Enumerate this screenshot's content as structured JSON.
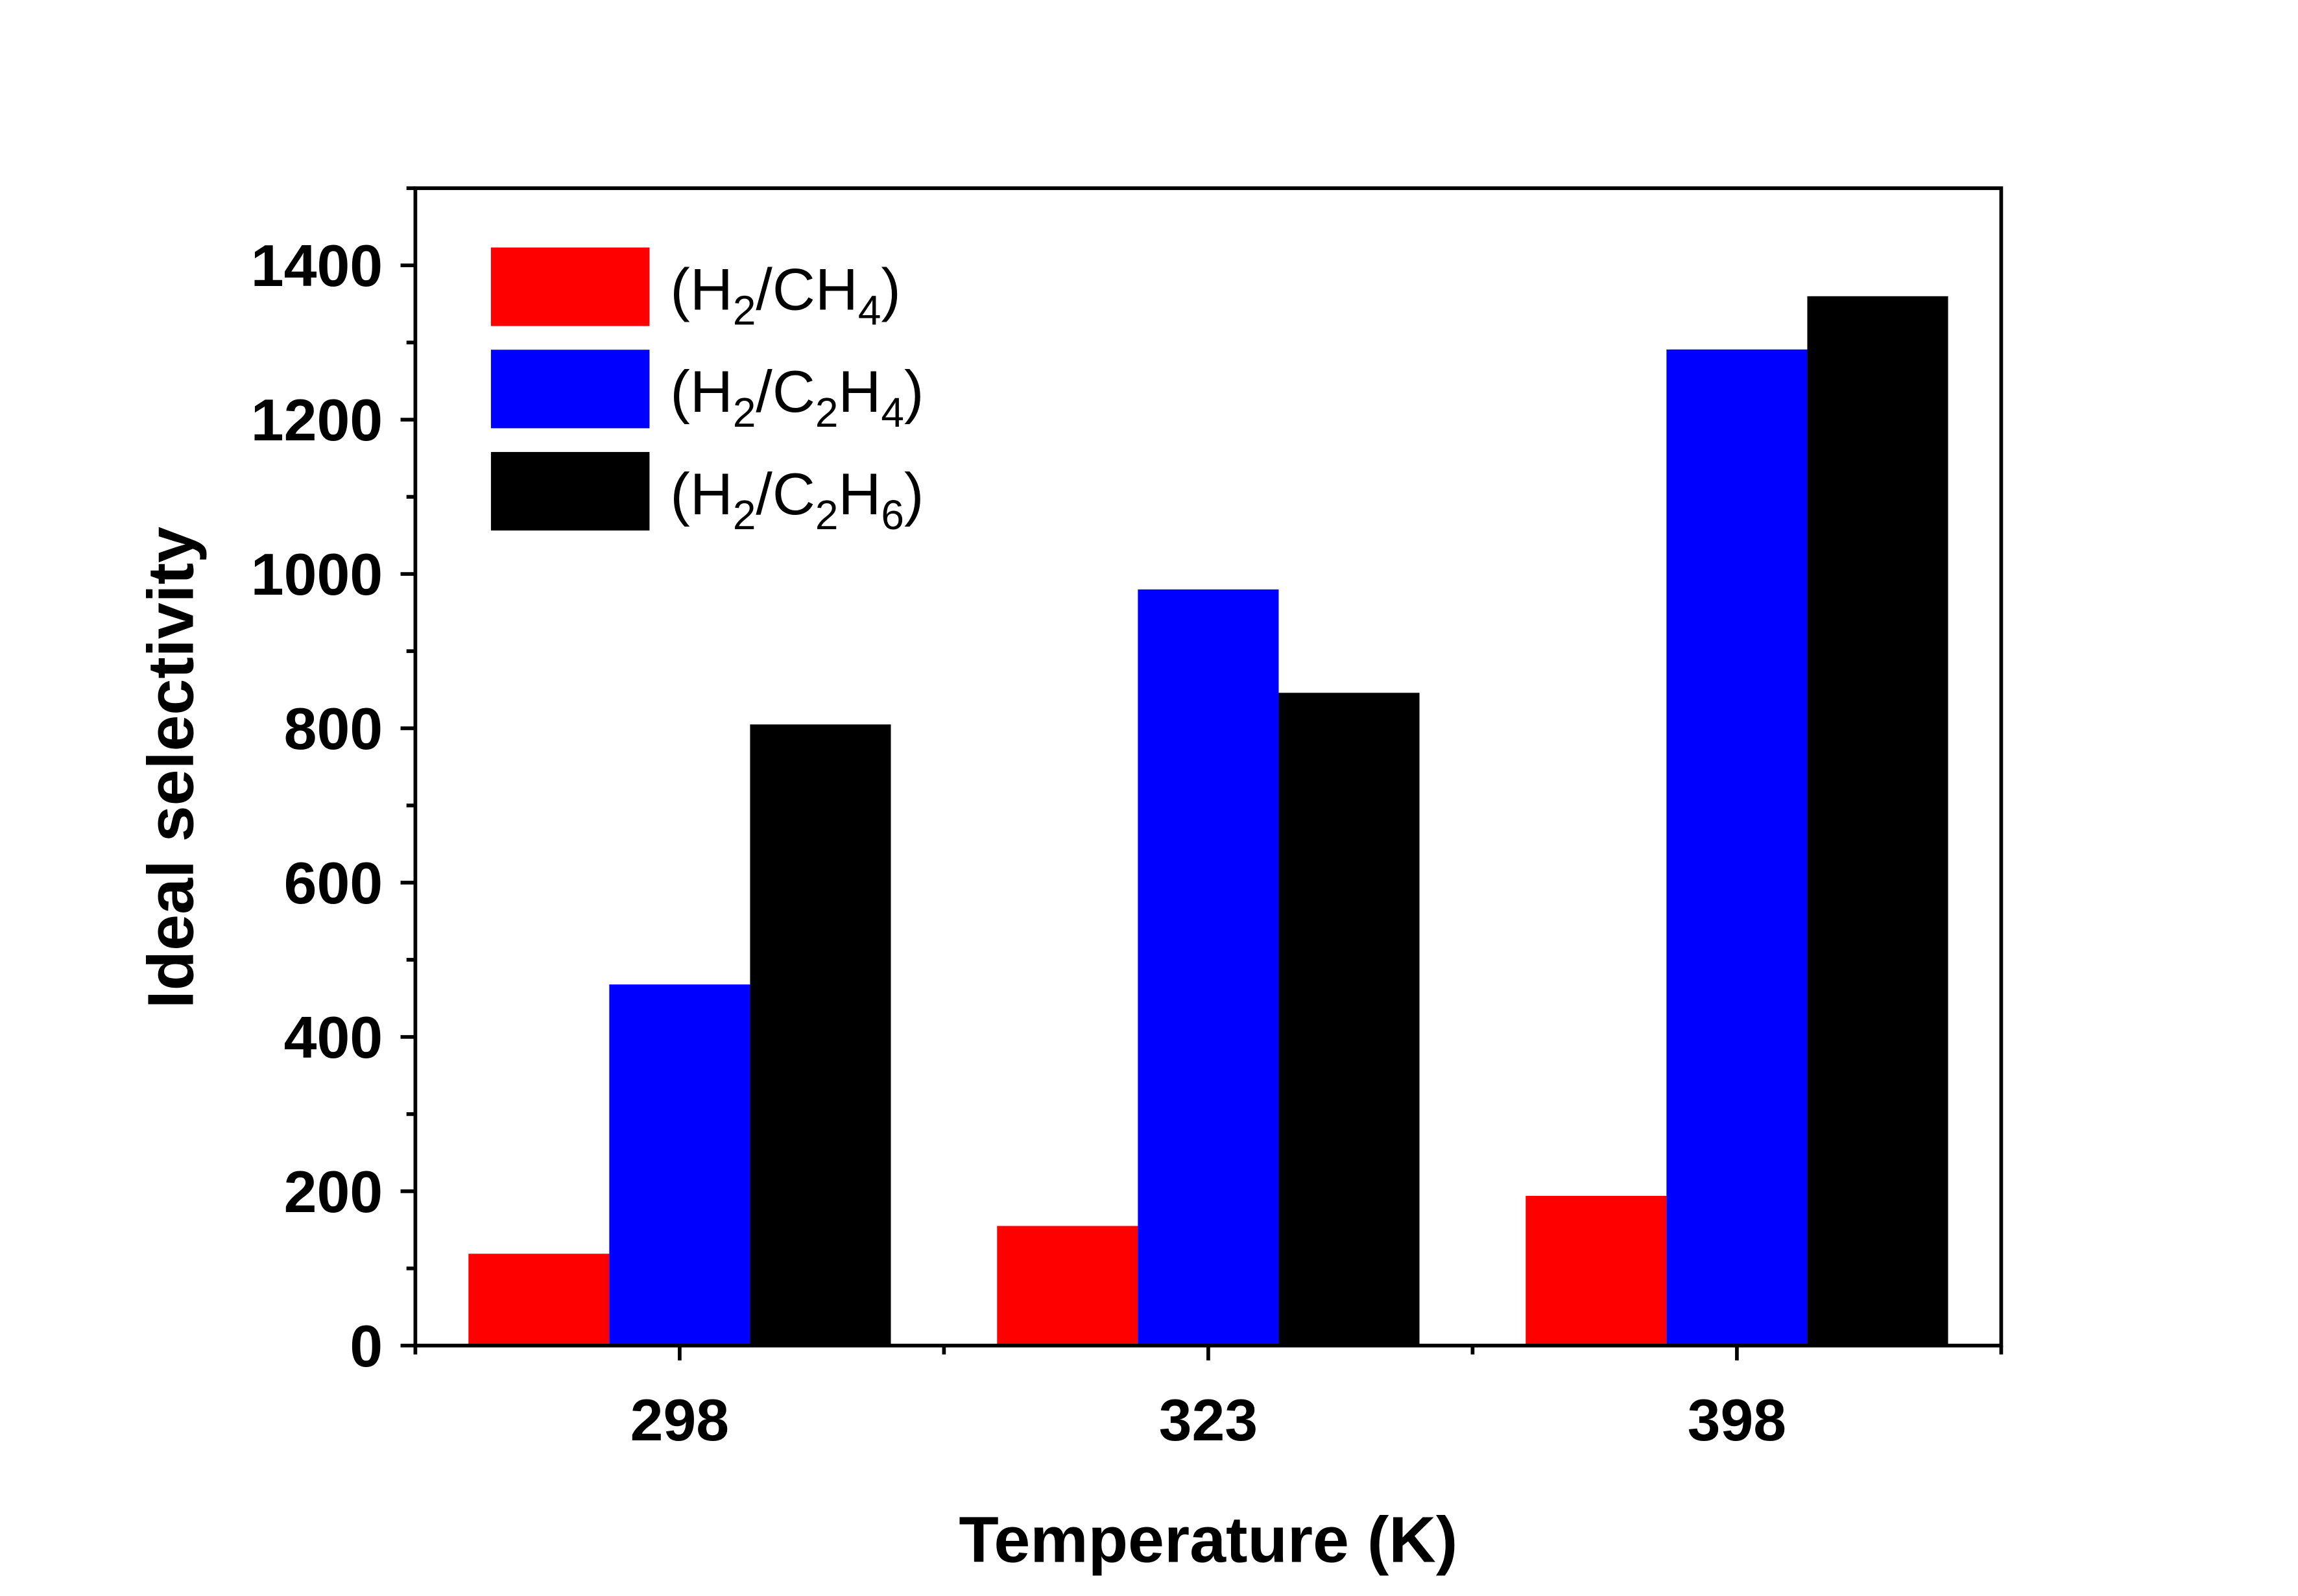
{
  "chart_data": {
    "type": "bar",
    "title": "",
    "xlabel": "Temperature (K)",
    "ylabel": "Ideal selectivity",
    "categories": [
      "298",
      "323",
      "398"
    ],
    "ylim": [
      0,
      1500
    ],
    "yticks": [
      0,
      200,
      400,
      600,
      800,
      1000,
      1200,
      1400
    ],
    "grid": false,
    "legend_position": "top-left",
    "series": [
      {
        "name": "(H2/CH4)",
        "color": "#ff0000",
        "values": [
          119,
          155,
          194
        ]
      },
      {
        "name": "(H2/C2H4)",
        "color": "#0000ff",
        "values": [
          468,
          980,
          1291
        ]
      },
      {
        "name": "(H2/C2H6)",
        "color": "#000000",
        "values": [
          805,
          846,
          1360
        ]
      }
    ]
  }
}
